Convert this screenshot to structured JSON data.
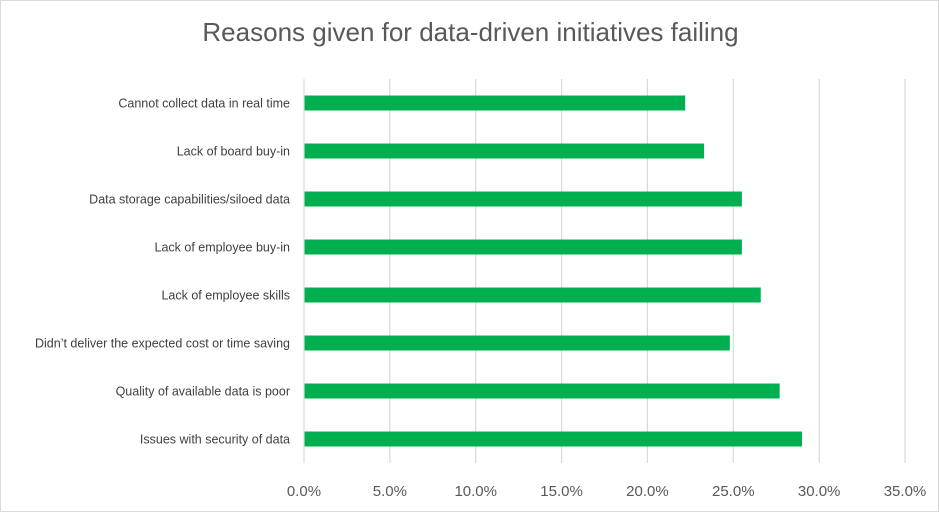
{
  "chart_data": {
    "type": "bar",
    "orientation": "horizontal",
    "title": "Reasons given for data-driven initiatives failing",
    "xlabel": "",
    "ylabel": "",
    "categories": [
      "Cannot collect data in real time",
      "Lack of board buy-in",
      "Data storage capabilities/siloed data",
      "Lack of employee buy-in",
      "Lack of employee skills",
      "Didn’t deliver the expected cost or time saving",
      "Quality of available data is poor",
      "Issues with security of data"
    ],
    "values": [
      0.222,
      0.233,
      0.255,
      0.255,
      0.266,
      0.248,
      0.277,
      0.29
    ],
    "xlim": [
      0,
      0.35
    ],
    "xticks": [
      "0.0%",
      "5.0%",
      "10.0%",
      "15.0%",
      "20.0%",
      "25.0%",
      "30.0%",
      "35.0%"
    ],
    "grid": true,
    "legend": "none",
    "bar_color": "#00b050",
    "grid_color": "#d9d9d9"
  }
}
